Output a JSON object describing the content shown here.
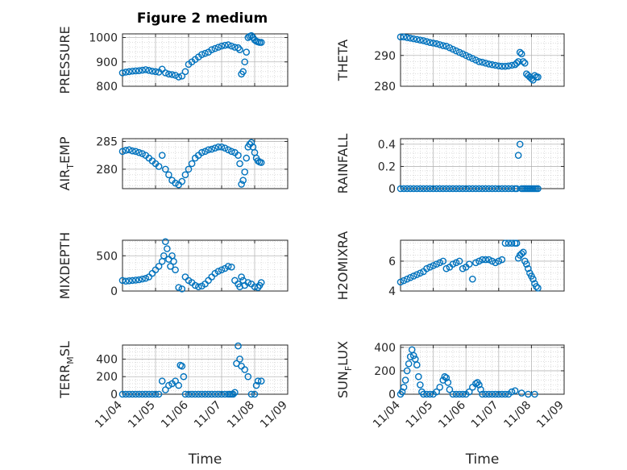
{
  "figure": {
    "title": "Figure 2 medium",
    "colors": {
      "marker": "#0072BD",
      "axis": "#262626",
      "grid": "#b0b0b0"
    }
  },
  "x_ticks": [
    "11/04",
    "11/05",
    "11/06",
    "11/07",
    "11/08",
    "11/09"
  ],
  "chart_data": [
    {
      "type": "scatter",
      "ylabel": "PRESSURE",
      "xlabel": "",
      "title": "Figure 2 medium",
      "xlim": [
        0,
        5
      ],
      "ylim": [
        800,
        1015
      ],
      "yticks": [
        800,
        900,
        1000
      ],
      "grid": true,
      "show_xticks": false,
      "x": [
        0.0,
        0.1,
        0.2,
        0.3,
        0.4,
        0.5,
        0.6,
        0.7,
        0.8,
        0.9,
        1.0,
        1.1,
        1.2,
        1.3,
        1.4,
        1.5,
        1.6,
        1.7,
        1.8,
        1.9,
        2.0,
        2.1,
        2.2,
        2.3,
        2.4,
        2.5,
        2.6,
        2.7,
        2.8,
        2.9,
        3.0,
        3.1,
        3.2,
        3.3,
        3.4,
        3.5,
        3.55,
        3.6,
        3.65,
        3.7,
        3.75,
        3.8,
        3.85,
        3.9,
        3.95,
        4.0,
        4.05,
        4.1,
        4.15,
        4.2
      ],
      "y": [
        855,
        858,
        860,
        862,
        863,
        864,
        866,
        868,
        865,
        862,
        860,
        858,
        870,
        855,
        850,
        848,
        845,
        838,
        842,
        860,
        890,
        900,
        910,
        920,
        930,
        935,
        940,
        950,
        955,
        960,
        965,
        968,
        970,
        965,
        960,
        958,
        950,
        850,
        860,
        900,
        940,
        1000,
        1005,
        1008,
        1000,
        990,
        985,
        982,
        980,
        980
      ]
    },
    {
      "type": "scatter",
      "ylabel": "THETA",
      "xlabel": "",
      "xlim": [
        0,
        5
      ],
      "ylim": [
        280,
        297
      ],
      "yticks": [
        280,
        290
      ],
      "grid": true,
      "show_xticks": false,
      "x": [
        0.0,
        0.1,
        0.2,
        0.3,
        0.4,
        0.5,
        0.6,
        0.7,
        0.8,
        0.9,
        1.0,
        1.1,
        1.2,
        1.3,
        1.4,
        1.5,
        1.6,
        1.7,
        1.8,
        1.9,
        2.0,
        2.1,
        2.2,
        2.3,
        2.4,
        2.5,
        2.6,
        2.7,
        2.8,
        2.9,
        3.0,
        3.1,
        3.2,
        3.3,
        3.4,
        3.5,
        3.55,
        3.6,
        3.65,
        3.7,
        3.75,
        3.8,
        3.85,
        3.9,
        3.95,
        4.0,
        4.05,
        4.1,
        4.15,
        4.2
      ],
      "y": [
        296,
        296,
        295.8,
        295.6,
        295.4,
        295.2,
        295,
        294.8,
        294.5,
        294.2,
        294,
        293.8,
        293.5,
        293.2,
        293,
        292.5,
        292,
        291.5,
        291,
        290.5,
        290,
        289.5,
        289,
        288.5,
        288,
        287.8,
        287.5,
        287.2,
        287,
        286.8,
        286.6,
        286.5,
        286.5,
        286.6,
        286.8,
        287,
        287.5,
        288,
        291,
        290.5,
        288,
        287.5,
        284,
        283.5,
        283,
        282.5,
        282,
        283.5,
        283,
        283
      ]
    },
    {
      "type": "scatter",
      "ylabel": "AIR_TEMP",
      "ylabel_main": "AIR",
      "ylabel_sub": "T",
      "ylabel_rest": "EMP",
      "xlabel": "",
      "xlim": [
        0,
        5
      ],
      "ylim": [
        276.5,
        285.5
      ],
      "yticks": [
        280,
        285
      ],
      "grid": true,
      "show_xticks": false,
      "x": [
        0.0,
        0.1,
        0.2,
        0.3,
        0.4,
        0.5,
        0.6,
        0.7,
        0.8,
        0.9,
        1.0,
        1.1,
        1.2,
        1.3,
        1.4,
        1.5,
        1.6,
        1.7,
        1.8,
        1.9,
        2.0,
        2.1,
        2.2,
        2.3,
        2.4,
        2.5,
        2.6,
        2.7,
        2.8,
        2.9,
        3.0,
        3.1,
        3.2,
        3.3,
        3.4,
        3.5,
        3.55,
        3.6,
        3.65,
        3.7,
        3.75,
        3.8,
        3.85,
        3.9,
        3.95,
        4.0,
        4.05,
        4.1,
        4.15,
        4.2
      ],
      "y": [
        283.2,
        283.4,
        283.5,
        283.3,
        283.2,
        283,
        282.8,
        282.5,
        282,
        281.5,
        281,
        280.5,
        282.5,
        280,
        279,
        278,
        277.5,
        277.2,
        277.8,
        279,
        280,
        281,
        282,
        282.5,
        283,
        283.2,
        283.5,
        283.6,
        283.8,
        284,
        284,
        283.8,
        283.5,
        283.2,
        283,
        282.5,
        281,
        277.3,
        278,
        279.5,
        282,
        284,
        284.5,
        284.8,
        284,
        283,
        282,
        281.5,
        281.3,
        281.2
      ]
    },
    {
      "type": "scatter",
      "ylabel": "RAINFALL",
      "xlabel": "",
      "xlim": [
        0,
        5
      ],
      "ylim": [
        0,
        0.45
      ],
      "yticks": [
        0,
        0.2,
        0.4
      ],
      "grid": true,
      "show_xticks": false,
      "x": [
        0.0,
        0.1,
        0.2,
        0.3,
        0.4,
        0.5,
        0.6,
        0.7,
        0.8,
        0.9,
        1.0,
        1.1,
        1.2,
        1.3,
        1.4,
        1.5,
        1.6,
        1.7,
        1.8,
        1.9,
        2.0,
        2.1,
        2.2,
        2.3,
        2.4,
        2.5,
        2.6,
        2.7,
        2.8,
        2.9,
        3.0,
        3.1,
        3.2,
        3.3,
        3.4,
        3.5,
        3.55,
        3.6,
        3.65,
        3.7,
        3.75,
        3.8,
        3.85,
        3.9,
        3.95,
        4.0,
        4.05,
        4.1,
        4.15,
        4.2
      ],
      "y": [
        0,
        0,
        0,
        0,
        0,
        0,
        0,
        0,
        0,
        0,
        0,
        0,
        0,
        0,
        0,
        0,
        0,
        0,
        0,
        0,
        0,
        0,
        0,
        0,
        0,
        0,
        0,
        0,
        0,
        0,
        0,
        0,
        0,
        0,
        0,
        0,
        0,
        0.3,
        0.4,
        0,
        0,
        0,
        0,
        0,
        0,
        0,
        0,
        0,
        0,
        0
      ]
    },
    {
      "type": "scatter",
      "ylabel": "MIXDEPTH",
      "xlabel": "",
      "xlim": [
        0,
        5
      ],
      "ylim": [
        0,
        720
      ],
      "yticks": [
        0,
        500
      ],
      "grid": true,
      "show_xticks": false,
      "x": [
        0.0,
        0.1,
        0.2,
        0.3,
        0.4,
        0.5,
        0.6,
        0.7,
        0.8,
        0.9,
        1.0,
        1.1,
        1.2,
        1.25,
        1.3,
        1.35,
        1.4,
        1.45,
        1.5,
        1.55,
        1.6,
        1.7,
        1.8,
        1.9,
        2.0,
        2.1,
        2.2,
        2.3,
        2.4,
        2.5,
        2.6,
        2.7,
        2.8,
        2.9,
        3.0,
        3.1,
        3.2,
        3.3,
        3.4,
        3.5,
        3.55,
        3.6,
        3.65,
        3.7,
        3.8,
        3.9,
        4.0,
        4.1,
        4.15,
        4.2
      ],
      "y": [
        150,
        140,
        145,
        150,
        155,
        160,
        170,
        180,
        200,
        250,
        300,
        350,
        420,
        500,
        700,
        600,
        450,
        350,
        500,
        420,
        300,
        50,
        30,
        200,
        150,
        120,
        80,
        60,
        70,
        100,
        150,
        200,
        250,
        280,
        300,
        320,
        350,
        340,
        150,
        100,
        60,
        200,
        150,
        80,
        120,
        100,
        60,
        50,
        80,
        120
      ]
    },
    {
      "type": "scatter",
      "ylabel": "H2OMIXRA",
      "xlabel": "",
      "xlim": [
        0,
        5
      ],
      "ylim": [
        4,
        7.4
      ],
      "yticks": [
        4,
        6
      ],
      "grid": true,
      "show_xticks": false,
      "x": [
        0.0,
        0.1,
        0.2,
        0.3,
        0.4,
        0.5,
        0.6,
        0.7,
        0.8,
        0.9,
        1.0,
        1.1,
        1.2,
        1.3,
        1.4,
        1.5,
        1.6,
        1.7,
        1.8,
        1.9,
        2.0,
        2.1,
        2.2,
        2.3,
        2.4,
        2.5,
        2.6,
        2.7,
        2.8,
        2.9,
        3.0,
        3.1,
        3.2,
        3.3,
        3.4,
        3.5,
        3.55,
        3.6,
        3.65,
        3.7,
        3.75,
        3.8,
        3.85,
        3.9,
        3.95,
        4.0,
        4.05,
        4.1,
        4.15,
        4.2
      ],
      "y": [
        4.6,
        4.7,
        4.8,
        4.9,
        5.0,
        5.1,
        5.2,
        5.3,
        5.5,
        5.6,
        5.7,
        5.8,
        5.9,
        6.0,
        5.5,
        5.6,
        5.8,
        5.9,
        6.0,
        5.5,
        5.6,
        5.8,
        4.8,
        5.9,
        6.0,
        6.1,
        6.1,
        6.1,
        6.0,
        5.9,
        6.0,
        6.1,
        7.2,
        7.2,
        7.2,
        7.2,
        7.2,
        6.2,
        6.4,
        6.5,
        6.6,
        6.0,
        5.8,
        5.5,
        5.2,
        5.0,
        4.8,
        4.5,
        4.3,
        4.2
      ]
    },
    {
      "type": "scatter",
      "ylabel": "TERR_MSL",
      "ylabel_main": "TERR",
      "ylabel_sub": "M",
      "ylabel_rest": "SL",
      "xlabel": "Time",
      "xlim": [
        0,
        5
      ],
      "ylim": [
        0,
        560
      ],
      "yticks": [
        0,
        200,
        400
      ],
      "grid": true,
      "show_xticks": true,
      "x": [
        0.0,
        0.1,
        0.2,
        0.3,
        0.4,
        0.5,
        0.6,
        0.7,
        0.8,
        0.9,
        1.0,
        1.1,
        1.2,
        1.3,
        1.4,
        1.5,
        1.6,
        1.7,
        1.75,
        1.8,
        1.85,
        1.9,
        2.0,
        2.1,
        2.2,
        2.3,
        2.4,
        2.5,
        2.6,
        2.7,
        2.8,
        2.9,
        3.0,
        3.1,
        3.2,
        3.25,
        3.3,
        3.35,
        3.4,
        3.45,
        3.5,
        3.55,
        3.6,
        3.7,
        3.8,
        3.9,
        4.0,
        4.05,
        4.1,
        4.2
      ],
      "y": [
        0,
        0,
        0,
        0,
        0,
        0,
        0,
        0,
        0,
        0,
        0,
        0,
        150,
        50,
        100,
        120,
        150,
        100,
        330,
        320,
        200,
        0,
        0,
        0,
        0,
        0,
        0,
        0,
        0,
        0,
        0,
        0,
        0,
        0,
        0,
        0,
        0,
        0,
        20,
        350,
        550,
        400,
        320,
        280,
        200,
        0,
        0,
        100,
        150,
        150
      ]
    },
    {
      "type": "scatter",
      "ylabel": "SUN_FLUX",
      "ylabel_main": "SUN",
      "ylabel_sub": "F",
      "ylabel_rest": "LUX",
      "xlabel": "Time",
      "xlim": [
        0,
        5
      ],
      "ylim": [
        0,
        420
      ],
      "yticks": [
        0,
        200,
        400
      ],
      "grid": true,
      "show_xticks": true,
      "x": [
        0.0,
        0.05,
        0.1,
        0.15,
        0.2,
        0.25,
        0.3,
        0.35,
        0.4,
        0.45,
        0.5,
        0.55,
        0.6,
        0.65,
        0.7,
        0.8,
        0.9,
        1.0,
        1.1,
        1.2,
        1.3,
        1.35,
        1.4,
        1.45,
        1.5,
        1.6,
        1.7,
        1.8,
        1.9,
        2.0,
        2.1,
        2.2,
        2.3,
        2.35,
        2.4,
        2.45,
        2.5,
        2.6,
        2.7,
        2.8,
        2.9,
        3.0,
        3.1,
        3.2,
        3.3,
        3.4,
        3.5,
        3.7,
        3.9,
        4.1
      ],
      "y": [
        0,
        20,
        60,
        120,
        200,
        260,
        320,
        380,
        330,
        300,
        250,
        150,
        80,
        20,
        0,
        0,
        0,
        0,
        20,
        60,
        120,
        150,
        140,
        100,
        40,
        0,
        0,
        0,
        0,
        0,
        20,
        60,
        90,
        100,
        80,
        40,
        0,
        0,
        0,
        0,
        0,
        0,
        0,
        0,
        0,
        20,
        30,
        10,
        0,
        0
      ]
    }
  ]
}
